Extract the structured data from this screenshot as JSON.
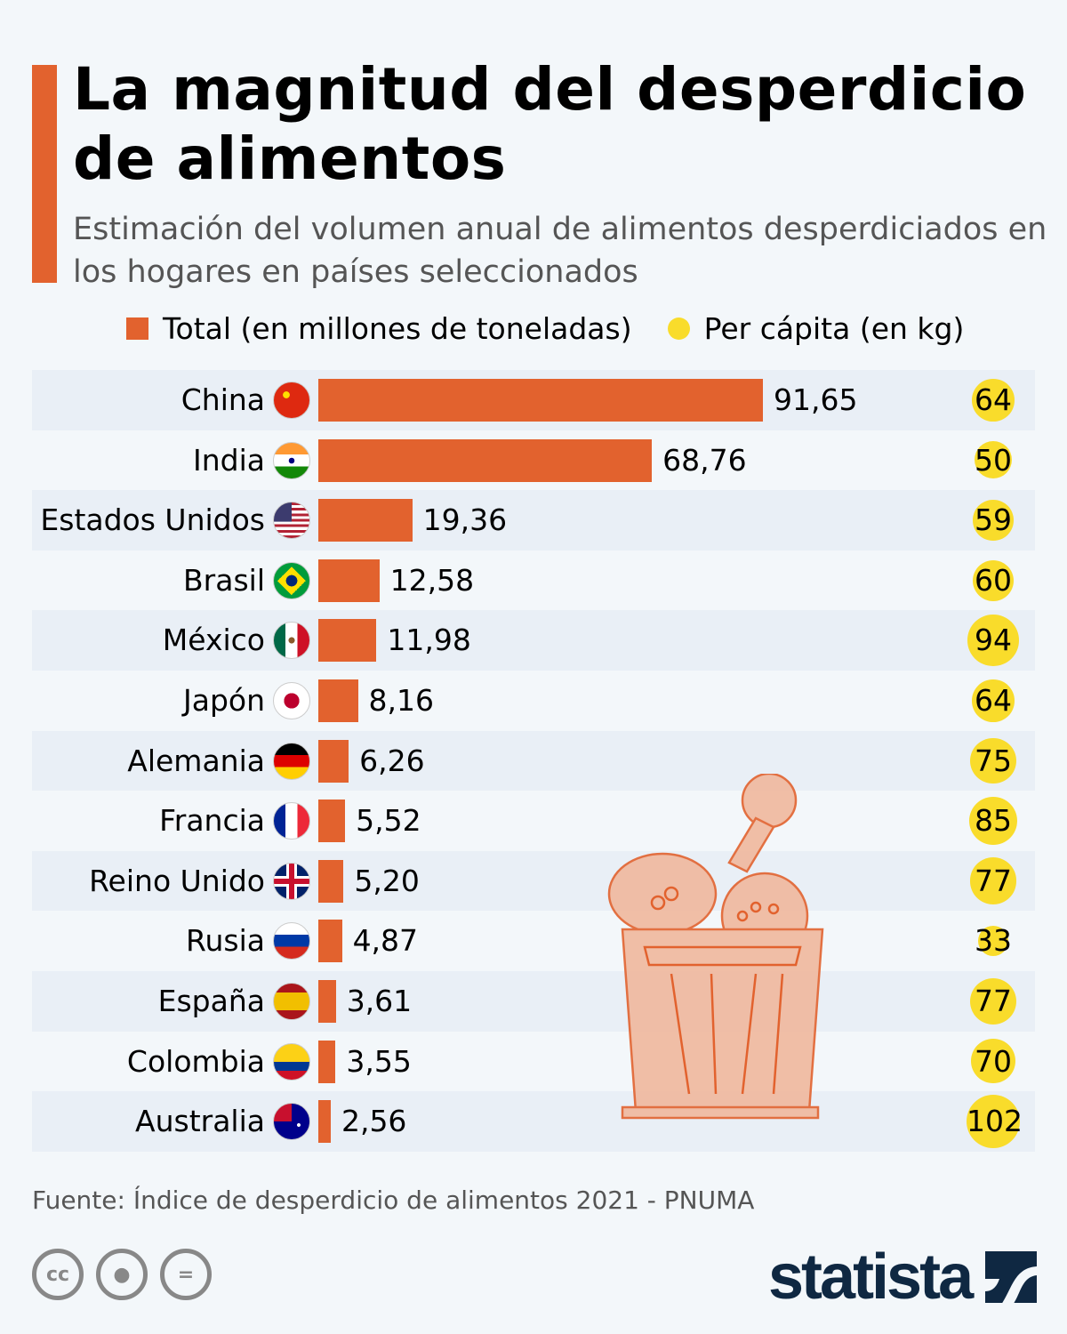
{
  "chart_data": {
    "type": "bar",
    "title": "La magnitud del desperdicio de alimentos",
    "subtitle": "Estimación del volumen anual de alimentos desperdiciados en los hogares en países seleccionados",
    "categories": [
      "China",
      "India",
      "Estados Unidos",
      "Brasil",
      "México",
      "Japón",
      "Alemania",
      "Francia",
      "Reino Unido",
      "Rusia",
      "España",
      "Colombia",
      "Australia"
    ],
    "value_labels": [
      "91,65",
      "68,76",
      "19,36",
      "12,58",
      "11,98",
      "8,16",
      "6,26",
      "5,52",
      "5,20",
      "4,87",
      "3,61",
      "3,55",
      "2,56"
    ],
    "series": [
      {
        "name": "Total (en millones de toneladas)",
        "values": [
          91.65,
          68.76,
          19.36,
          12.58,
          11.98,
          8.16,
          6.26,
          5.52,
          5.2,
          4.87,
          3.61,
          3.55,
          2.56
        ],
        "color": "#e2622e"
      },
      {
        "name": "Per cápita (en kg)",
        "values": [
          64,
          50,
          59,
          60,
          94,
          64,
          75,
          85,
          77,
          33,
          77,
          70,
          102
        ],
        "color": "#f9dc2b"
      }
    ],
    "legend": "top",
    "grid": false
  },
  "source": "Fuente: Índice de desperdicio de alimentos 2021 - PNUMA",
  "license_icons": [
    "cc-icon",
    "attribution-icon",
    "no-derivatives-icon"
  ],
  "logo": "statista",
  "flags": [
    "china",
    "india",
    "usa",
    "brazil",
    "mexico",
    "japan",
    "germany",
    "france",
    "uk",
    "russia",
    "spain",
    "colombia",
    "australia"
  ]
}
